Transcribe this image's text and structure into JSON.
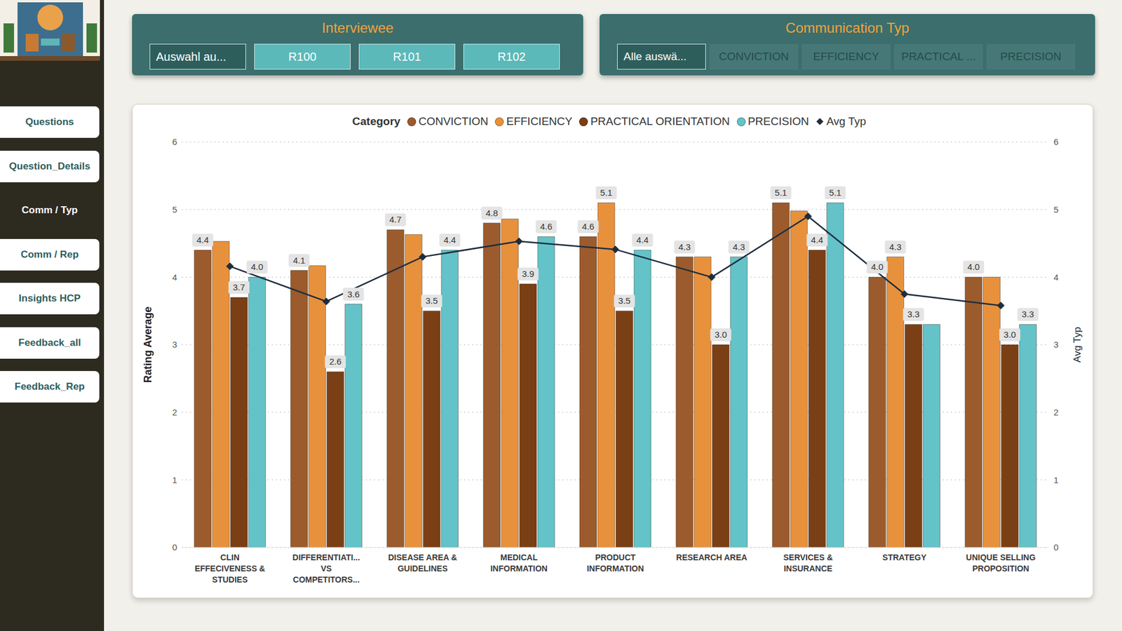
{
  "sidebar": {
    "buttons": [
      "Questions",
      "Question_Details",
      "Comm / Typ",
      "Comm / Rep",
      "Insights HCP",
      "Feedback_all",
      "Feedback_Rep"
    ],
    "active": "Comm / Typ"
  },
  "slicers": [
    {
      "title": "Interviewee",
      "options": [
        "Auswahl au...",
        "R100",
        "R101",
        "R102"
      ],
      "selected": "Auswahl au..."
    },
    {
      "title": "Communication Typ",
      "options": [
        "Alle auswä...",
        "CONVICTION",
        "EFFICIENCY",
        "PRACTICAL ...",
        "PRECISION"
      ],
      "selected": "Alle auswä..."
    }
  ],
  "chart_data": {
    "type": "bar",
    "legend_title": "Category",
    "legend": "top",
    "ylabel": "Rating Average",
    "y2label": "Avg Typ",
    "categories": [
      "CLIN EFFECIVENESS & STUDIES",
      "DIFFERENTIATI... VS COMPETITORS...",
      "DISEASE AREA & GUIDELINES",
      "MEDICAL INFORMATION",
      "PRODUCT INFORMATION",
      "RESEARCH AREA",
      "SERVICES & INSURANCE",
      "STRATEGY",
      "UNIQUE SELLING PROPOSITION"
    ],
    "ylim": [
      0,
      6
    ],
    "yticks": [
      0,
      1,
      2,
      3,
      4,
      5,
      6
    ],
    "y2lim": [
      0,
      6
    ],
    "y2ticks": [
      0,
      1,
      2,
      3,
      4,
      5,
      6
    ],
    "grid": true,
    "data_labels": true,
    "series": [
      {
        "name": "CONVICTION",
        "color": "#9C5B2C",
        "values": [
          4.4,
          4.1,
          4.7,
          4.8,
          4.6,
          4.3,
          5.1,
          4.0,
          4.0
        ],
        "value_labels": [
          "4.4",
          "4.1",
          "4.7",
          "4.8",
          "4.6",
          "4.3",
          "5.1",
          "4.0",
          "4.0"
        ]
      },
      {
        "name": "EFFICIENCY",
        "color": "#E8913C",
        "values": [
          4.53,
          4.17,
          4.63,
          4.86,
          5.1,
          4.3,
          4.98,
          4.3,
          4.0
        ],
        "value_labels": [
          null,
          null,
          null,
          null,
          "5.1",
          null,
          null,
          "4.3",
          null
        ]
      },
      {
        "name": "PRACTICAL ORIENTATION",
        "color": "#7B3F15",
        "values": [
          3.7,
          2.6,
          3.5,
          3.9,
          3.5,
          3.0,
          4.4,
          3.3,
          3.0
        ],
        "value_labels": [
          "3.7",
          "2.6",
          "3.5",
          "3.9",
          "3.5",
          "3.0",
          "4.4",
          "3.3",
          "3.0"
        ]
      },
      {
        "name": "PRECISION",
        "color": "#63C3C8",
        "values": [
          4.0,
          3.6,
          4.4,
          4.6,
          4.4,
          4.3,
          5.1,
          3.3,
          3.3
        ],
        "value_labels": [
          "4.0",
          "3.6",
          "4.4",
          "4.6",
          "4.4",
          "4.3",
          "5.1",
          null,
          "3.3"
        ]
      },
      {
        "name": "Avg Typ",
        "type": "line",
        "axis": "y2",
        "color": "#1F2D3D",
        "marker": "diamond",
        "values": [
          4.16,
          3.64,
          4.3,
          4.53,
          4.41,
          4.0,
          4.9,
          3.75,
          3.58
        ]
      }
    ]
  }
}
